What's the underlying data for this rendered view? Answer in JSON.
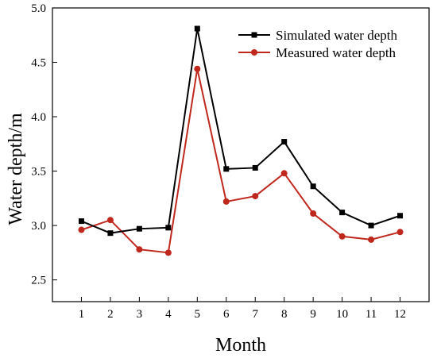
{
  "chart_data": {
    "type": "line",
    "title": "",
    "xlabel": "Month",
    "ylabel": "Water depth/m",
    "x": [
      1,
      2,
      3,
      4,
      5,
      6,
      7,
      8,
      9,
      10,
      11,
      12
    ],
    "x_tick_labels": [
      "1",
      "2",
      "3",
      "4",
      "5",
      "6",
      "7",
      "8",
      "9",
      "10",
      "11",
      "12"
    ],
    "xlim": [
      0,
      13
    ],
    "ylim": [
      2.3,
      5.0
    ],
    "y_ticks": [
      2.5,
      3.0,
      3.5,
      4.0,
      4.5,
      5.0
    ],
    "y_tick_labels": [
      "2.5",
      "3.0",
      "3.5",
      "4.0",
      "4.5",
      "5.0"
    ],
    "grid": false,
    "legend_position": "top-right",
    "series": [
      {
        "name": "Simulated water depth",
        "color": "#000000",
        "marker": "square",
        "values": [
          3.04,
          2.93,
          2.97,
          2.98,
          4.81,
          3.52,
          3.53,
          3.77,
          3.36,
          3.12,
          3.0,
          3.09
        ]
      },
      {
        "name": "Measured water depth",
        "color": "#c0281e",
        "marker": "circle",
        "values": [
          2.96,
          3.05,
          2.78,
          2.75,
          4.44,
          3.22,
          3.27,
          3.48,
          3.11,
          2.9,
          2.87,
          2.94
        ]
      }
    ]
  }
}
